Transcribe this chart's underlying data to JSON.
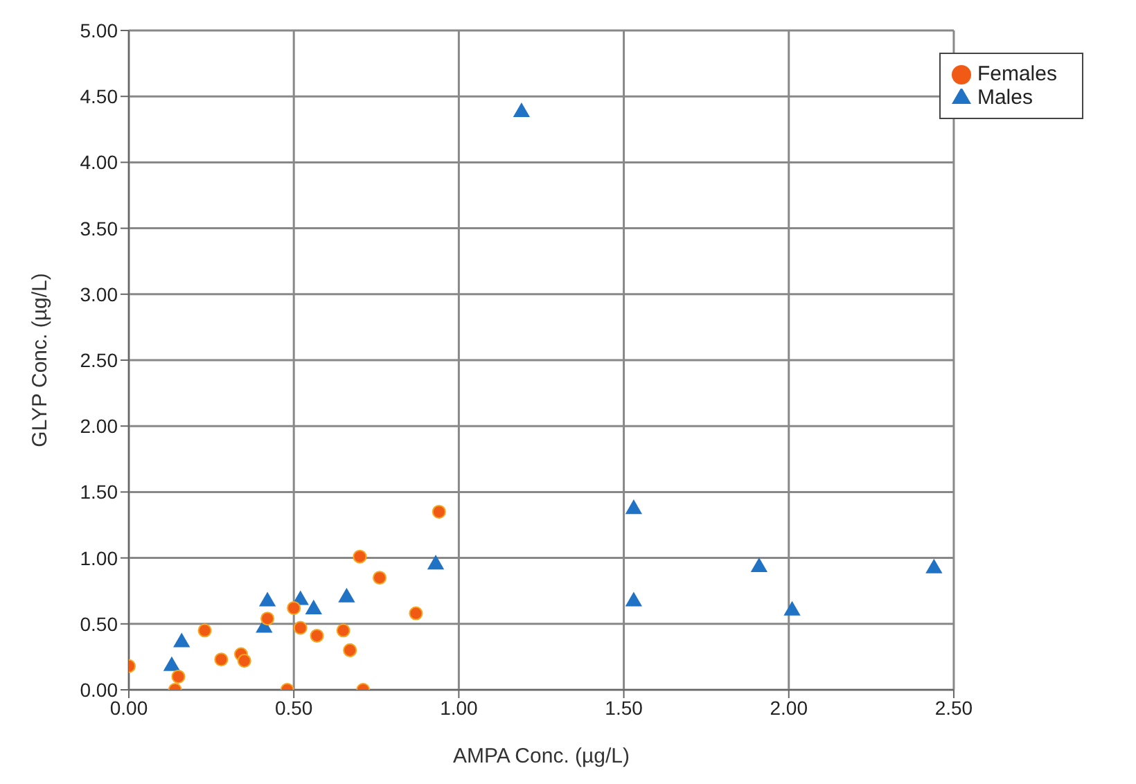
{
  "chart_data": {
    "type": "scatter",
    "xlabel": "AMPA Conc. (µg/L)",
    "ylabel": "GLYP Conc. (µg/L)",
    "xlim": [
      0,
      2.5
    ],
    "xticks": [
      {
        "value": 0,
        "label": "0.00"
      },
      {
        "value": 0.5,
        "label": "0.50"
      },
      {
        "value": 1,
        "label": "1.00"
      },
      {
        "value": 1.5,
        "label": "1.50"
      },
      {
        "value": 2,
        "label": "2.00"
      },
      {
        "value": 2.5,
        "label": "2.50"
      }
    ],
    "ylim": [
      0,
      5
    ],
    "yticks": [
      {
        "value": 0,
        "label": "0.00"
      },
      {
        "value": 0.5,
        "label": "0.50"
      },
      {
        "value": 1,
        "label": "1.00"
      },
      {
        "value": 1.5,
        "label": "1.50"
      },
      {
        "value": 2,
        "label": "2.00"
      },
      {
        "value": 2.5,
        "label": "2.50"
      },
      {
        "value": 3,
        "label": "3.00"
      },
      {
        "value": 3.5,
        "label": "3.50"
      },
      {
        "value": 4,
        "label": "4.00"
      },
      {
        "value": 4.5,
        "label": "4.50"
      },
      {
        "value": 5,
        "label": "5.00"
      }
    ],
    "grid": true,
    "legend": "top right",
    "series": [
      {
        "name": "Males",
        "color": "#1f72c4",
        "marker": "triangle",
        "x": [
          0.13,
          0.16,
          0.41,
          0.42,
          0.52,
          0.56,
          0.66,
          0.93,
          1.19,
          1.53,
          1.53,
          1.91,
          2.01,
          2.44
        ],
        "values": [
          0.18,
          0.36,
          0.47,
          0.67,
          0.68,
          0.61,
          0.7,
          0.95,
          4.38,
          1.37,
          0.67,
          0.93,
          0.6,
          0.92
        ]
      },
      {
        "name": "Females",
        "color": "#f05a14",
        "marker": "circle",
        "x": [
          0,
          0.14,
          0.15,
          0.23,
          0.28,
          0.34,
          0.35,
          0.42,
          0.48,
          0.5,
          0.52,
          0.57,
          0.65,
          0.67,
          0.7,
          0.71,
          0.76,
          0.87,
          0.94
        ],
        "values": [
          0.18,
          0,
          0.1,
          0.45,
          0.23,
          0.27,
          0.22,
          0.54,
          0,
          0.62,
          0.47,
          0.41,
          0.45,
          0.3,
          1.01,
          0,
          0.85,
          0.58,
          1.35
        ]
      }
    ]
  }
}
